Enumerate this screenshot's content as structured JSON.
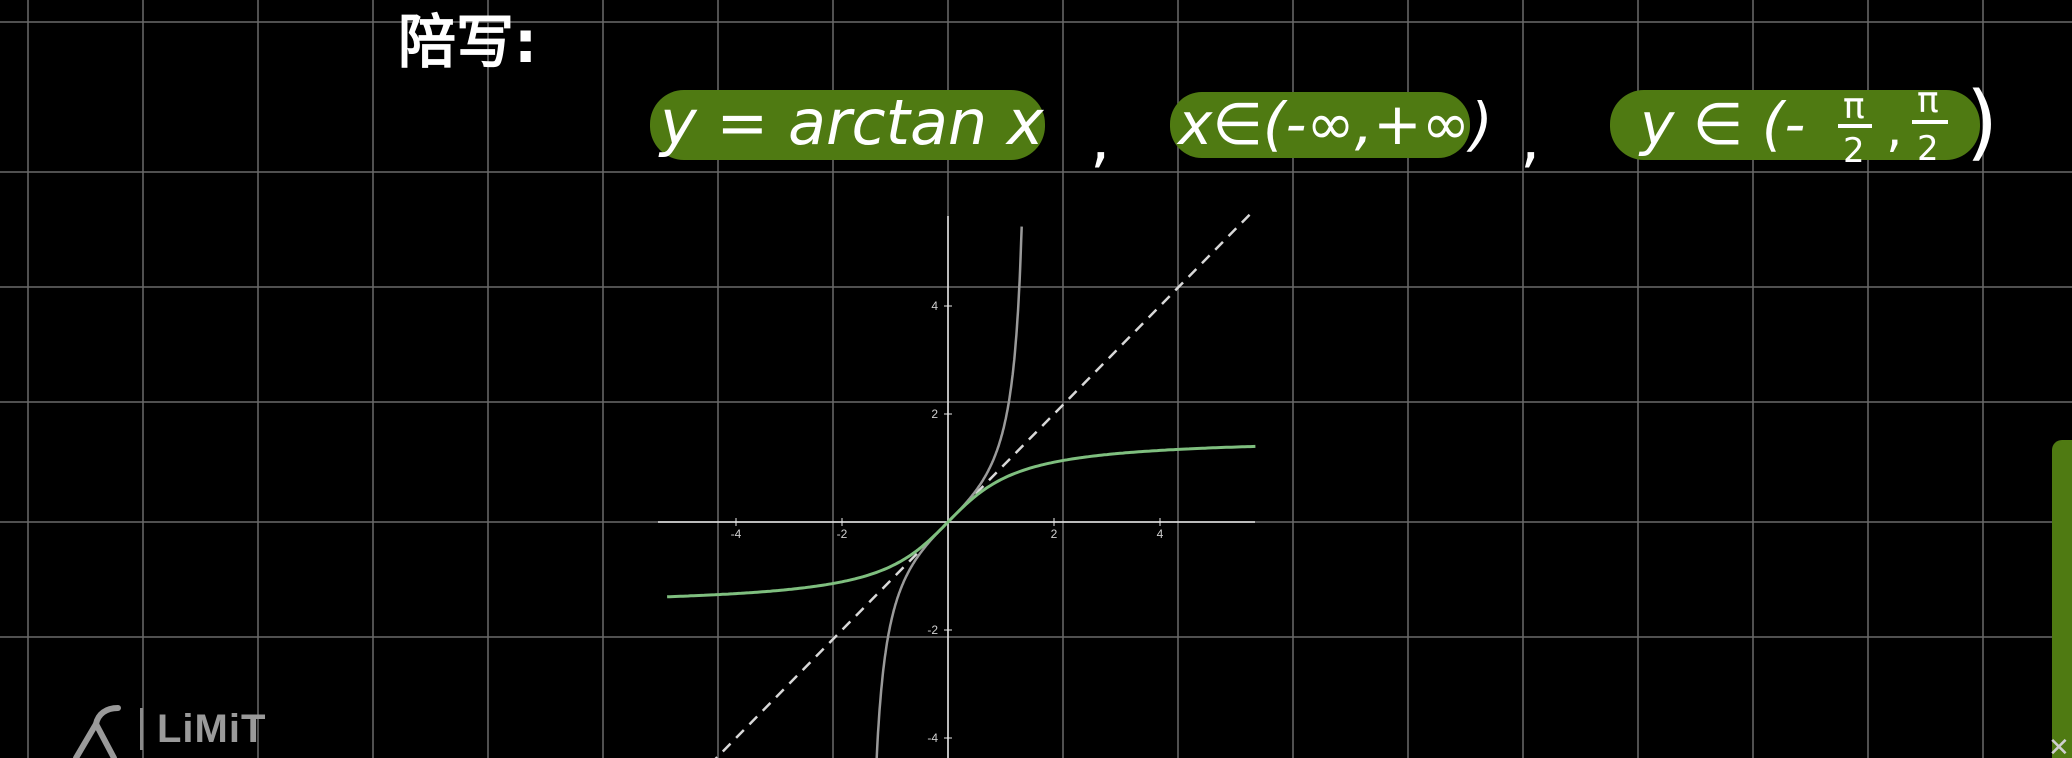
{
  "heading": "陪写:",
  "formula": {
    "function": "y = arctan x",
    "sep1": ",",
    "domain": "x∈(-∞,+∞)",
    "sep2": ",",
    "range_prefix": "y ∈ (-",
    "pi": "π",
    "two": "2",
    "comma": ",",
    "close": ")"
  },
  "colors": {
    "background": "#000000",
    "grid": "#6a6a6a",
    "highlight": "#4f7a12",
    "arctan_curve": "#7fbf7f",
    "tan_curve": "#9a9a9a",
    "identity_line": "#d8d8d8",
    "axis": "#e8e8e8"
  },
  "plot": {
    "x_ticks": [
      "-4",
      "-2",
      "2",
      "4"
    ],
    "y_ticks": [
      "4",
      "2",
      "-2",
      "-4"
    ]
  },
  "chart_data": {
    "type": "line",
    "xlim": [
      -5.3,
      5.8
    ],
    "ylim": [
      -4.5,
      5.7
    ],
    "x_ticks": [
      -4,
      -2,
      2,
      4
    ],
    "y_ticks": [
      4,
      2,
      -2,
      -4
    ],
    "series": [
      {
        "function": "arctan",
        "style": "solid",
        "color": "#7fbf7f"
      },
      {
        "function": "tan",
        "style": "solid",
        "color": "#9a9a9a"
      },
      {
        "function": "identity",
        "style": "dashed",
        "color": "#d8d8d8"
      }
    ],
    "grid": false
  },
  "logo": {
    "text": "LiMiT",
    "icon": "limit-logo-icon"
  }
}
